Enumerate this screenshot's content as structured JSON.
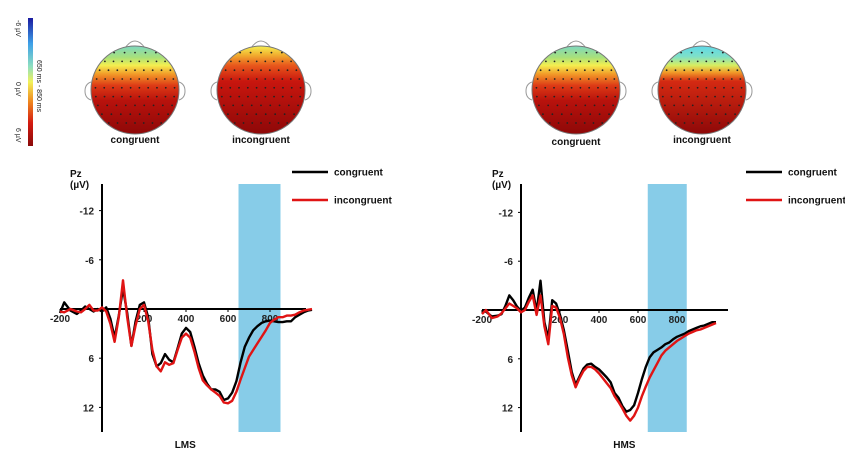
{
  "colorbar": {
    "top_label": "-6 µV",
    "mid_label": "0 µV",
    "bottom_label": "6 µV",
    "window_label": "650 ms - 850 ms",
    "colors": [
      "#1a1aa0",
      "#3da0e8",
      "#8fe0c0",
      "#f2f25a",
      "#f08a20",
      "#d41a10",
      "#8a0a0a"
    ]
  },
  "topomaps": [
    {
      "label": "congruent",
      "panel": "LMS",
      "style": "green-top"
    },
    {
      "label": "incongruent",
      "panel": "LMS",
      "style": "orange-top"
    },
    {
      "label": "congruent",
      "panel": "HMS",
      "style": "green-top"
    },
    {
      "label": "incongruent",
      "panel": "HMS",
      "style": "cyan-top"
    }
  ],
  "chart_data": [
    {
      "type": "line",
      "title": "LMS",
      "ylabel": "Pz\n(µV)",
      "ylabel_lines": [
        "Pz",
        "(µV)"
      ],
      "y_inverted": true,
      "xlim": [
        -200,
        1000
      ],
      "ylim": [
        -16,
        15
      ],
      "xticks": [
        -200,
        200,
        400,
        600,
        800
      ],
      "xtick_labels": [
        "-200",
        "200",
        "400",
        "600",
        "800"
      ],
      "yticks": [
        -12,
        -6,
        6,
        12
      ],
      "ytick_labels": [
        "-12",
        "-6",
        "6",
        "12"
      ],
      "shaded_window": [
        650,
        850
      ],
      "shade_color": "#87cce8",
      "legend_position": "top-right",
      "series": [
        {
          "name": "congruent",
          "color": "#000000",
          "x": [
            -200,
            -180,
            -150,
            -120,
            -100,
            -80,
            -60,
            -40,
            -20,
            0,
            20,
            40,
            60,
            80,
            100,
            120,
            140,
            160,
            180,
            200,
            220,
            240,
            260,
            280,
            300,
            320,
            340,
            360,
            380,
            400,
            420,
            440,
            460,
            480,
            500,
            520,
            540,
            560,
            580,
            600,
            620,
            640,
            660,
            680,
            700,
            720,
            740,
            760,
            780,
            800,
            820,
            840,
            860,
            880,
            900,
            920,
            940,
            960,
            980,
            1000
          ],
          "y": [
            0.5,
            -0.8,
            0.2,
            0.6,
            0.2,
            -0.3,
            0,
            0.3,
            0,
            0.3,
            -0.2,
            1.2,
            3.5,
            0.8,
            -2.5,
            0.5,
            4.5,
            1.5,
            -0.5,
            -0.8,
            1,
            5.5,
            7,
            6.6,
            5.5,
            6.2,
            6.5,
            4.8,
            3,
            2.3,
            2.8,
            4.6,
            6.6,
            8.1,
            9.1,
            9.8,
            9.8,
            10.1,
            11.1,
            10.9,
            10.2,
            8.8,
            6.5,
            4.6,
            3.5,
            2.6,
            2.1,
            1.7,
            1.5,
            1.4,
            1.5,
            1.6,
            1.6,
            1.5,
            1.5,
            1,
            0.7,
            0.4,
            0.2,
            0.1
          ]
        },
        {
          "name": "incongruent",
          "color": "#e01414",
          "x": [
            -200,
            -180,
            -150,
            -120,
            -100,
            -80,
            -60,
            -40,
            -20,
            0,
            20,
            40,
            60,
            80,
            100,
            120,
            140,
            160,
            180,
            200,
            220,
            240,
            260,
            280,
            300,
            320,
            340,
            360,
            380,
            400,
            420,
            440,
            460,
            480,
            500,
            520,
            540,
            560,
            580,
            600,
            620,
            640,
            660,
            680,
            700,
            720,
            740,
            760,
            780,
            800,
            820,
            840,
            860,
            880,
            900,
            920,
            940,
            960,
            980,
            1000
          ],
          "y": [
            0.3,
            0.4,
            0,
            0.3,
            0.4,
            0,
            -0.5,
            0.2,
            0.2,
            -0.2,
            0.3,
            1.8,
            4,
            1,
            -3.5,
            1,
            4.5,
            2,
            0,
            -0.5,
            1.5,
            5,
            7,
            7.6,
            6.5,
            6.8,
            6.6,
            5,
            3.5,
            3,
            3.5,
            5.2,
            7.2,
            8.7,
            9.3,
            9.8,
            10.2,
            10.6,
            11.4,
            11.5,
            11.2,
            10.1,
            8.6,
            7.2,
            5.8,
            5,
            4.2,
            3.4,
            2.6,
            1.7,
            1.3,
            1,
            1,
            0.8,
            0.8,
            0.7,
            0.4,
            0.2,
            0.1,
            0
          ]
        }
      ]
    },
    {
      "type": "line",
      "title": "HMS",
      "ylabel": "Pz\n(µV)",
      "ylabel_lines": [
        "Pz",
        "(µV)"
      ],
      "y_inverted": true,
      "xlim": [
        -200,
        1000
      ],
      "ylim": [
        -16,
        15
      ],
      "xticks": [
        -200,
        200,
        400,
        600,
        800
      ],
      "xtick_labels": [
        "-200",
        "200",
        "400",
        "600",
        "800"
      ],
      "yticks": [
        -12,
        -6,
        6,
        12
      ],
      "ytick_labels": [
        "-12",
        "-6",
        "6",
        "12"
      ],
      "shaded_window": [
        650,
        850
      ],
      "shade_color": "#87cce8",
      "legend_position": "top-right",
      "series": [
        {
          "name": "congruent",
          "color": "#000000",
          "x": [
            -200,
            -180,
            -150,
            -120,
            -100,
            -80,
            -60,
            -40,
            -20,
            0,
            20,
            40,
            60,
            80,
            100,
            120,
            140,
            160,
            180,
            200,
            220,
            240,
            260,
            280,
            300,
            320,
            340,
            360,
            380,
            400,
            420,
            440,
            460,
            480,
            500,
            520,
            540,
            560,
            580,
            600,
            620,
            640,
            660,
            680,
            700,
            720,
            740,
            760,
            780,
            800,
            820,
            840,
            860,
            880,
            900,
            920,
            940,
            960,
            980,
            1000
          ],
          "y": [
            0,
            0.2,
            0.8,
            0.7,
            0.5,
            -0.5,
            -1.8,
            -1.2,
            -0.4,
            0.1,
            -0.3,
            -1.5,
            -2.5,
            0.2,
            -3.6,
            1.5,
            3.5,
            -1.2,
            -0.8,
            0.6,
            2.5,
            5,
            7.6,
            9.2,
            8.2,
            7.2,
            6.7,
            6.6,
            7,
            7.3,
            7.8,
            8.3,
            8.9,
            10.2,
            10.8,
            11.8,
            12.5,
            12.3,
            11.7,
            10.2,
            8.5,
            7,
            5.8,
            5.2,
            4.9,
            4.6,
            4.2,
            4,
            3.6,
            3.3,
            3.1,
            2.9,
            2.6,
            2.4,
            2.2,
            2,
            1.9,
            1.7,
            1.5,
            1.5
          ]
        },
        {
          "name": "incongruent",
          "color": "#e01414",
          "x": [
            -200,
            -180,
            -150,
            -120,
            -100,
            -80,
            -60,
            -40,
            -20,
            0,
            20,
            40,
            60,
            80,
            100,
            120,
            140,
            160,
            180,
            200,
            220,
            240,
            260,
            280,
            300,
            320,
            340,
            360,
            380,
            400,
            420,
            440,
            460,
            480,
            500,
            520,
            540,
            560,
            580,
            600,
            620,
            640,
            660,
            680,
            700,
            720,
            740,
            760,
            780,
            800,
            820,
            840,
            860,
            880,
            900,
            920,
            940,
            960,
            980,
            1000
          ],
          "y": [
            0.5,
            0,
            1,
            0.8,
            0.4,
            -0.2,
            -0.8,
            -0.5,
            -0.2,
            0.3,
            0,
            -1,
            -1.8,
            0.6,
            -1.8,
            2,
            4.2,
            -0.5,
            -0.3,
            1,
            3,
            5.8,
            8,
            9.5,
            8.4,
            7.5,
            7,
            7,
            7.3,
            7.8,
            8.4,
            9,
            9.6,
            10.6,
            11.3,
            12.1,
            13,
            13.6,
            13,
            12,
            10.6,
            9.4,
            8.3,
            7.4,
            6.5,
            5.6,
            5,
            4.6,
            4.2,
            3.8,
            3.5,
            3.2,
            2.9,
            2.7,
            2.5,
            2.4,
            2.2,
            2,
            1.8,
            1.6
          ]
        }
      ]
    }
  ]
}
